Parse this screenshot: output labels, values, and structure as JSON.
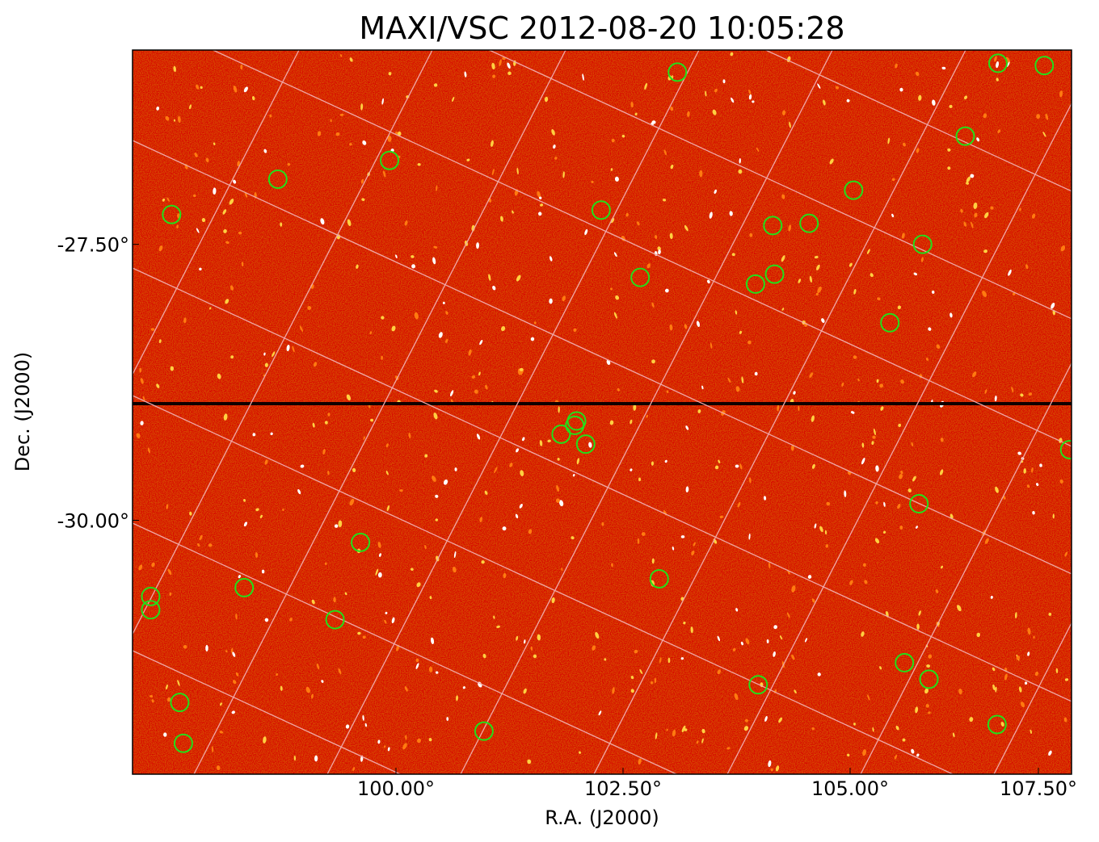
{
  "chart_data": {
    "type": "heatmap",
    "title": "MAXI/VSC 2012-08-20 10:05:28",
    "xlabel": "R.A. (J2000)",
    "ylabel": "Dec. (J2000)",
    "x_ticks": [
      {
        "value": 100.0,
        "label": "100.00°"
      },
      {
        "value": 102.5,
        "label": "102.50°"
      },
      {
        "value": 105.0,
        "label": "105.00°"
      },
      {
        "value": 107.5,
        "label": "107.50°"
      }
    ],
    "y_ticks": [
      {
        "value": -27.5,
        "label": "-27.50°"
      },
      {
        "value": -30.0,
        "label": "-30.00°"
      }
    ],
    "xlim": [
      97.1,
      107.44
    ],
    "ylim": [
      -32.3,
      -25.74
    ],
    "grid": true,
    "colormap": "red-heat",
    "colors": {
      "background": "#c41a00",
      "grid": "#f0a8a8",
      "markers": "#22e01a",
      "source": "#ffffff"
    },
    "markers": {
      "shape": "circle",
      "points": [
        [
          103.1,
          -25.94
        ],
        [
          106.63,
          -25.86
        ],
        [
          107.14,
          -25.88
        ],
        [
          106.27,
          -26.52
        ],
        [
          99.93,
          -26.74
        ],
        [
          98.7,
          -26.91
        ],
        [
          97.53,
          -27.23
        ],
        [
          102.26,
          -27.19
        ],
        [
          105.04,
          -27.01
        ],
        [
          104.15,
          -27.33
        ],
        [
          104.55,
          -27.31
        ],
        [
          105.8,
          -27.5
        ],
        [
          102.69,
          -27.8
        ],
        [
          103.96,
          -27.86
        ],
        [
          104.17,
          -27.77
        ],
        [
          105.44,
          -28.21
        ],
        [
          101.99,
          -29.1
        ],
        [
          101.97,
          -29.14
        ],
        [
          101.82,
          -29.22
        ],
        [
          102.09,
          -29.31
        ],
        [
          107.42,
          -29.36
        ],
        [
          105.76,
          -29.85
        ],
        [
          99.61,
          -30.2
        ],
        [
          102.9,
          -30.53
        ],
        [
          98.33,
          -30.61
        ],
        [
          97.3,
          -30.69
        ],
        [
          97.3,
          -30.81
        ],
        [
          99.33,
          -30.9
        ],
        [
          105.6,
          -31.29
        ],
        [
          105.87,
          -31.44
        ],
        [
          103.99,
          -31.49
        ],
        [
          97.62,
          -31.65
        ],
        [
          106.62,
          -31.85
        ],
        [
          100.97,
          -31.91
        ],
        [
          97.66,
          -32.02
        ]
      ]
    }
  }
}
